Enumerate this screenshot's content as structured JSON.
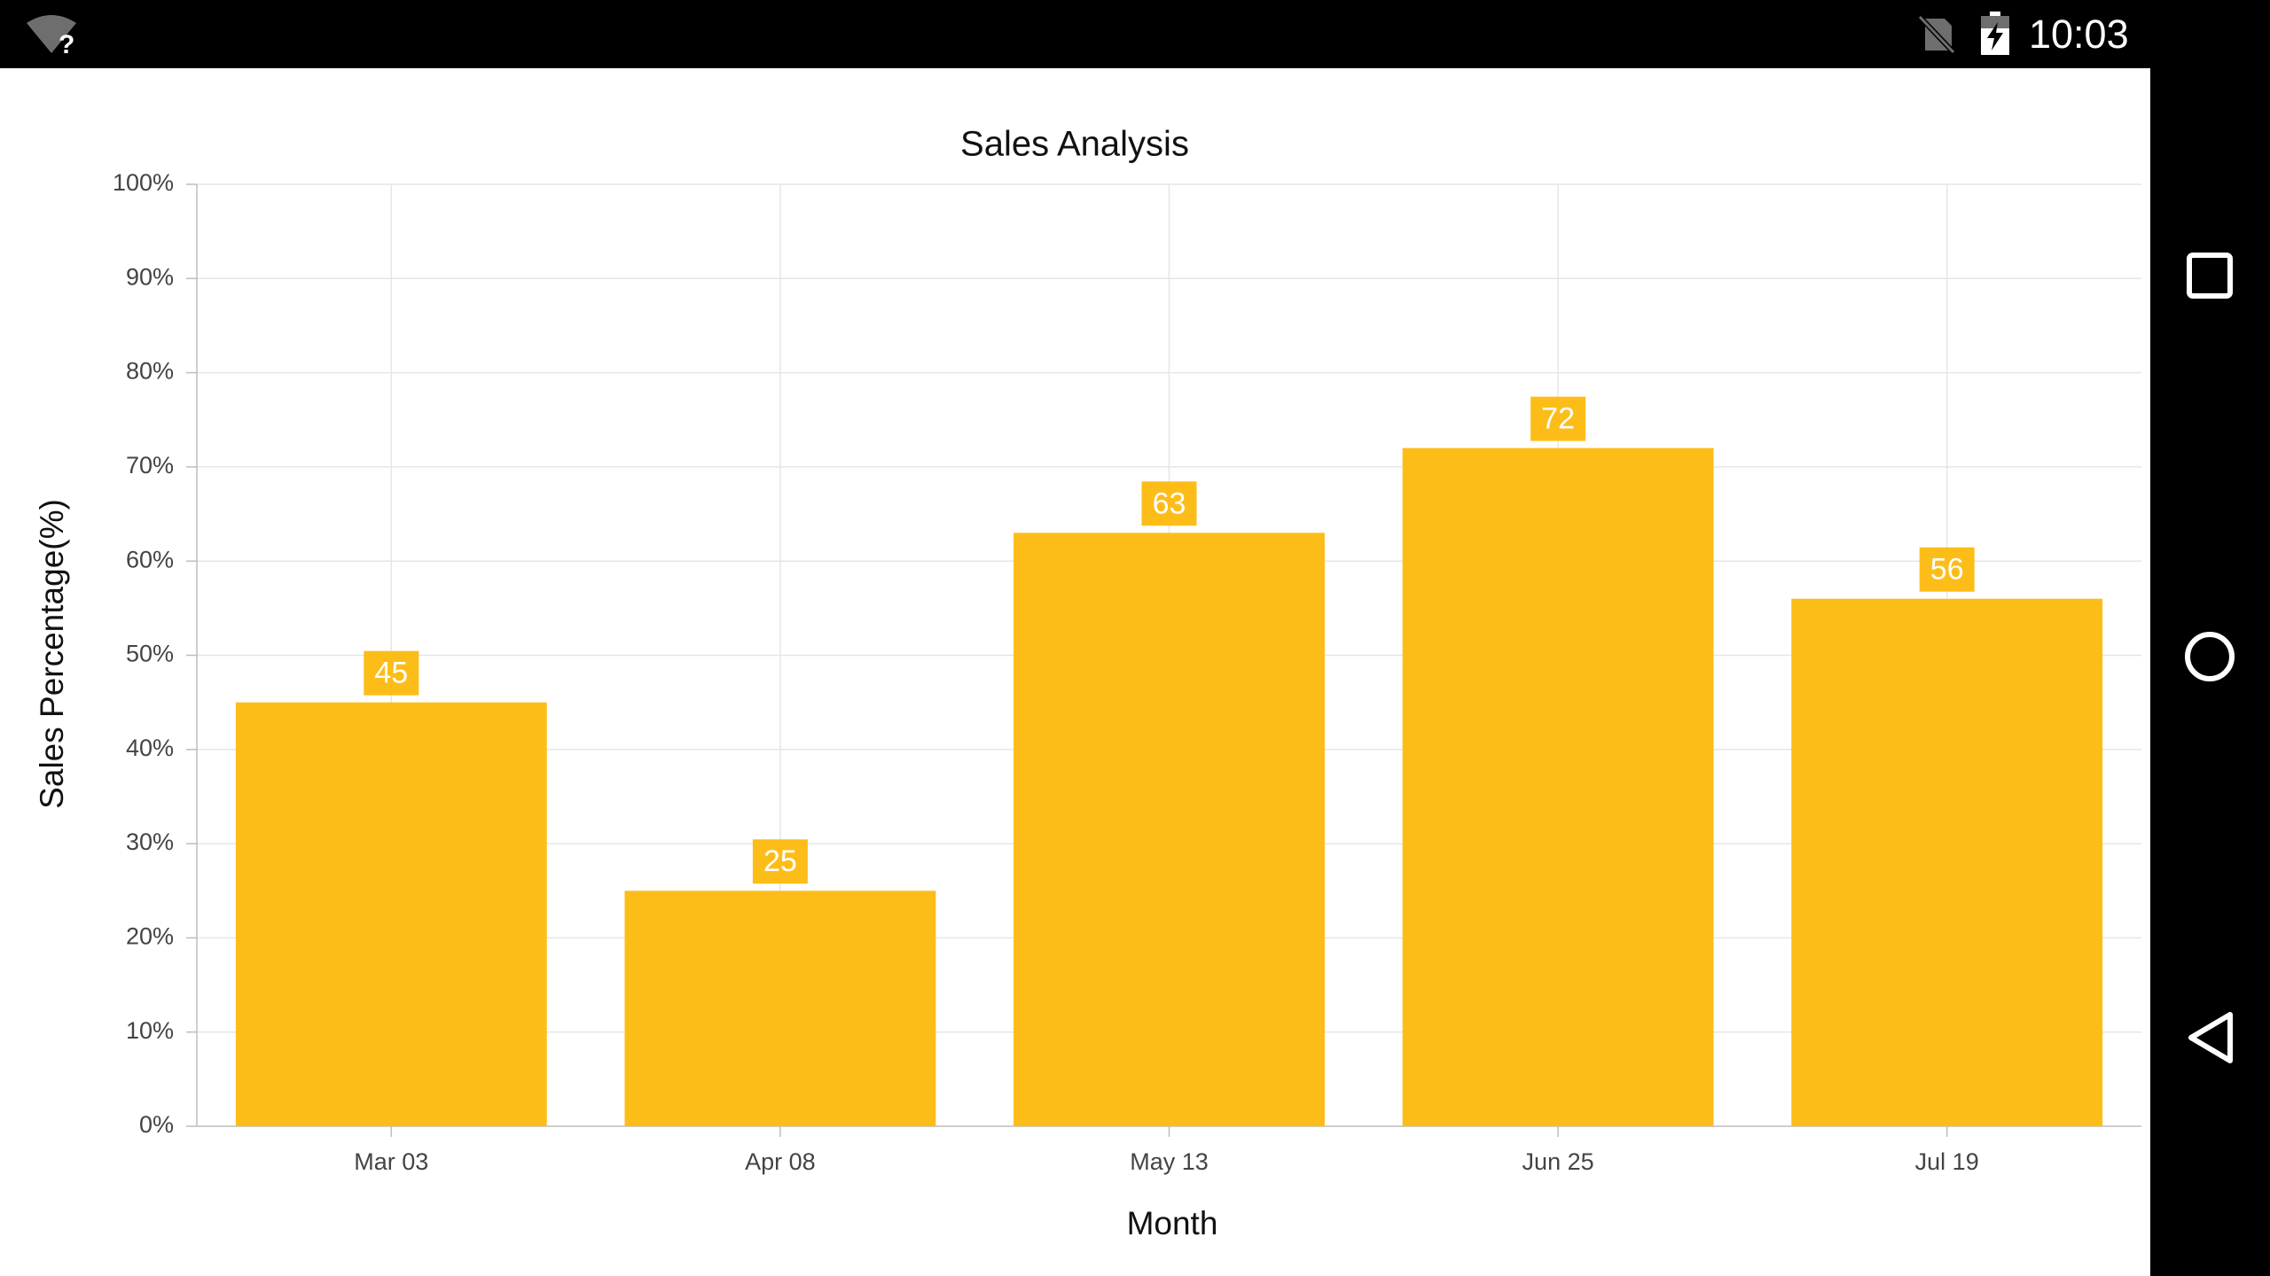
{
  "status_bar": {
    "time": "10:03",
    "icons": [
      "wifi-unknown-icon",
      "no-sim-icon",
      "battery-charging-icon"
    ]
  },
  "nav_bar": {
    "buttons": [
      "recents-icon",
      "home-icon",
      "back-icon"
    ]
  },
  "colors": {
    "bar": "#FDBD19",
    "grid": "#E6E6E6",
    "axis": "#BDBDBD",
    "background": "#FFFFFF"
  },
  "chart_data": {
    "type": "bar",
    "title": "Sales Analysis",
    "xlabel": "Month",
    "ylabel": "Sales Percentage(%)",
    "categories": [
      "Mar 03",
      "Apr 08",
      "May 13",
      "Jun 25",
      "Jul 19"
    ],
    "values": [
      45,
      25,
      63,
      72,
      56
    ],
    "data_labels": [
      "45",
      "25",
      "63",
      "72",
      "56"
    ],
    "ylim": [
      0,
      100
    ],
    "y_ticks": [
      "0%",
      "10%",
      "20%",
      "30%",
      "40%",
      "50%",
      "60%",
      "70%",
      "80%",
      "90%",
      "100%"
    ],
    "grid": true,
    "legend": "none"
  }
}
